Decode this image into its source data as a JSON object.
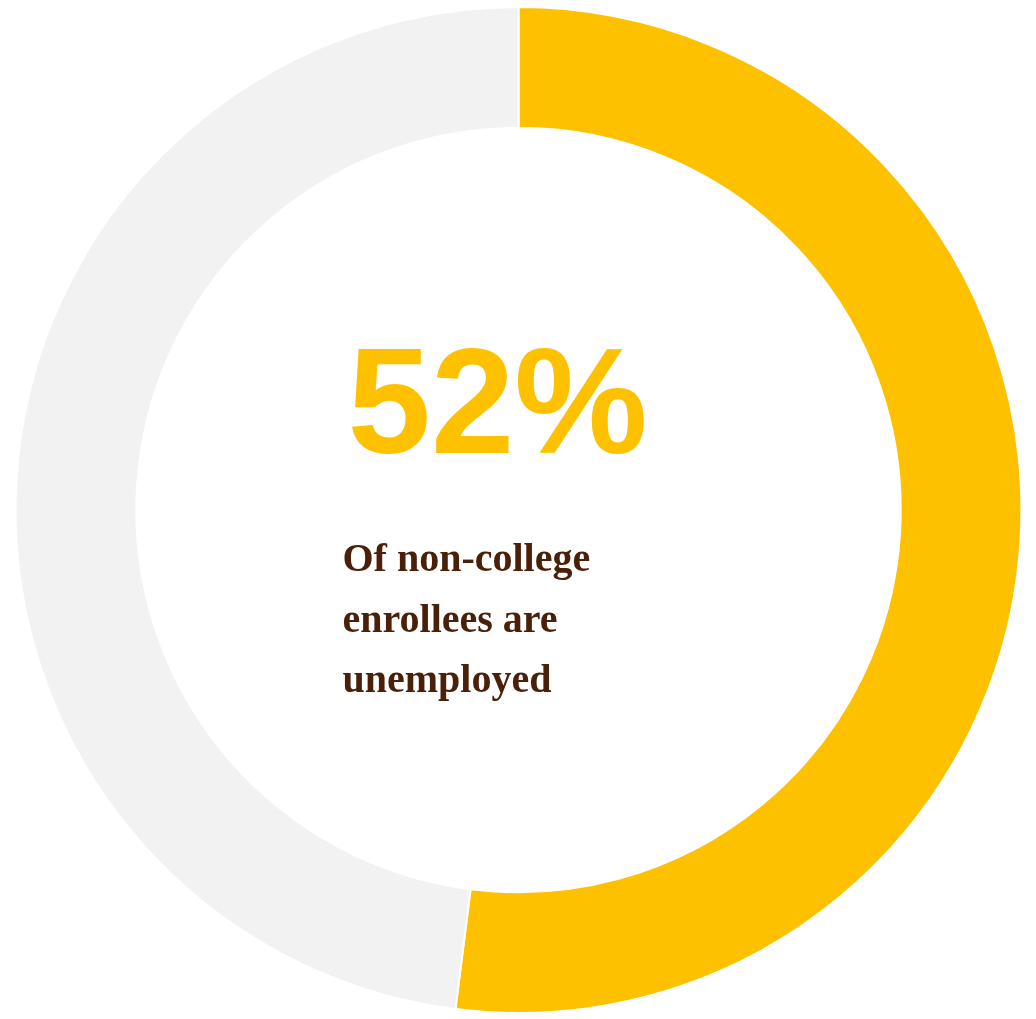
{
  "chart_data": {
    "type": "donut",
    "categories": [
      null,
      null
    ],
    "values": [
      52,
      48
    ],
    "colors": [
      "#fdc100",
      "#f2f2f2"
    ],
    "annotations": [
      "52%",
      "Of non-college enrollees are unemployed"
    ]
  }
}
